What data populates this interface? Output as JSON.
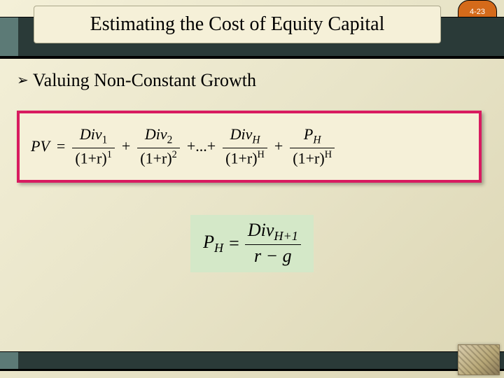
{
  "page_badge": {
    "label": "4-23",
    "bg": "#d46a1a",
    "fg": "#ffffff"
  },
  "title": "Estimating the Cost of Equity Capital",
  "bullet": {
    "marker": "➢",
    "text": "Valuing Non-Constant Growth"
  },
  "formula1": {
    "border_color": "#d81b60",
    "bg": "#f5f0d8",
    "lhs": "PV",
    "eq": "=",
    "terms": [
      {
        "num_sym": "Div",
        "num_sub": "1",
        "den_base": "(1+r)",
        "den_exp": "1"
      },
      {
        "num_sym": "Div",
        "num_sub": "2",
        "den_base": "(1+r)",
        "den_exp": "2"
      }
    ],
    "ellipsis": "+...+",
    "tail": [
      {
        "num_sym": "Div",
        "num_sub": "H",
        "den_base": "(1+r)",
        "den_exp": "H"
      },
      {
        "num_sym": "P",
        "num_sub": "H",
        "den_base": "(1+r)",
        "den_exp": "H"
      }
    ],
    "plus": "+"
  },
  "formula2": {
    "bg": "#d4e8c8",
    "lhs_sym": "P",
    "lhs_sub": "H",
    "eq": "=",
    "num_sym": "Div",
    "num_sub": "H+1",
    "den": "r − g"
  },
  "colors": {
    "slide_bg_start": "#f4f0d8",
    "slide_bg_end": "#dcd6b4",
    "band_dark": "#2a3a38",
    "band_accent": "#5c7a76",
    "title_pill_bg": "#f5f0d8"
  }
}
